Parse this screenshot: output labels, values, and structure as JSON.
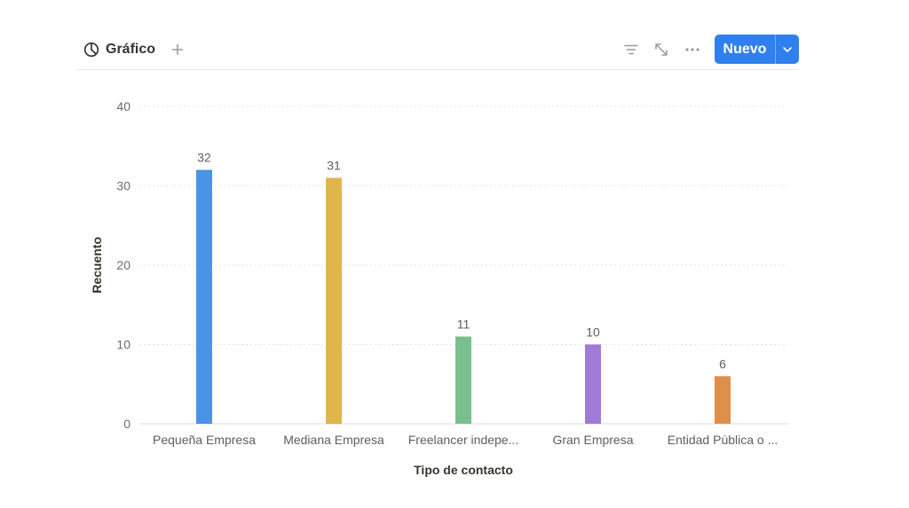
{
  "header": {
    "view_label": "Gráfico",
    "view_icon": "pie-chart-icon",
    "add_icon": "plus-icon",
    "filter_icon": "filter-icon",
    "expand_icon": "expand-icon",
    "more_icon": "more-icon",
    "new_button_label": "Nuevo",
    "new_button_caret_icon": "chevron-down-icon",
    "accent_color": "#2f80ed"
  },
  "chart_data": {
    "type": "bar",
    "xlabel": "Tipo de contacto",
    "ylabel": "Recuento",
    "ylim": [
      0,
      40
    ],
    "yticks": [
      0,
      10,
      20,
      30,
      40
    ],
    "grid": true,
    "categories": [
      "Pequeña Empresa",
      "Mediana Empresa",
      "Freelancer indepe...",
      "Gran Empresa",
      "Entidad Pública o ..."
    ],
    "values": [
      32,
      31,
      11,
      10,
      6
    ],
    "colors": [
      "#4a94e6",
      "#e0b64c",
      "#7abf8e",
      "#a07ad6",
      "#e08e4c"
    ]
  }
}
